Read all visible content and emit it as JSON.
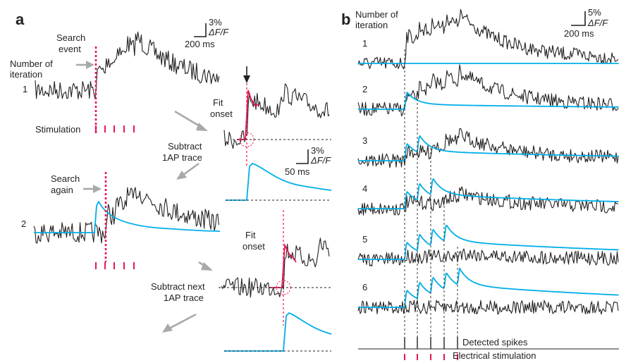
{
  "panel_a": {
    "label": "a",
    "search_event": [
      "Search",
      "event"
    ],
    "number_of_iteration": [
      "Number of",
      "iteration"
    ],
    "iteration_1": "1",
    "iteration_2": "2",
    "stimulation": "Stimulation",
    "scale_pct": "3%",
    "scale_dff": "ΔF/F",
    "scale_time": "200 ms",
    "fit_onset_1": [
      "Fit",
      "onset"
    ],
    "subtract_1ap": [
      "Subtract",
      "1AP trace"
    ],
    "search_again": [
      "Search",
      "again"
    ],
    "inset_scale_pct": "3%",
    "inset_scale_dff": "ΔF/F",
    "inset_scale_time": "50 ms",
    "fit_onset_2": [
      "Fit",
      "onset"
    ],
    "subtract_next": [
      "Subtract next",
      "1AP trace"
    ]
  },
  "panel_b": {
    "label": "b",
    "number_of_iteration": [
      "Number of",
      "iteration"
    ],
    "scale_pct": "5%",
    "scale_dff": "ΔF/F",
    "scale_time": "200 ms",
    "iterations": [
      "1",
      "2",
      "3",
      "4",
      "5",
      "6"
    ],
    "detected_spikes": "Detected spikes",
    "electrical_stimulation": "Electrical stimulation"
  },
  "colors": {
    "trace": "#231f20",
    "fit": "#00aee8",
    "stimulus": "#e8174f",
    "arrow": "#a7a9ac"
  }
}
